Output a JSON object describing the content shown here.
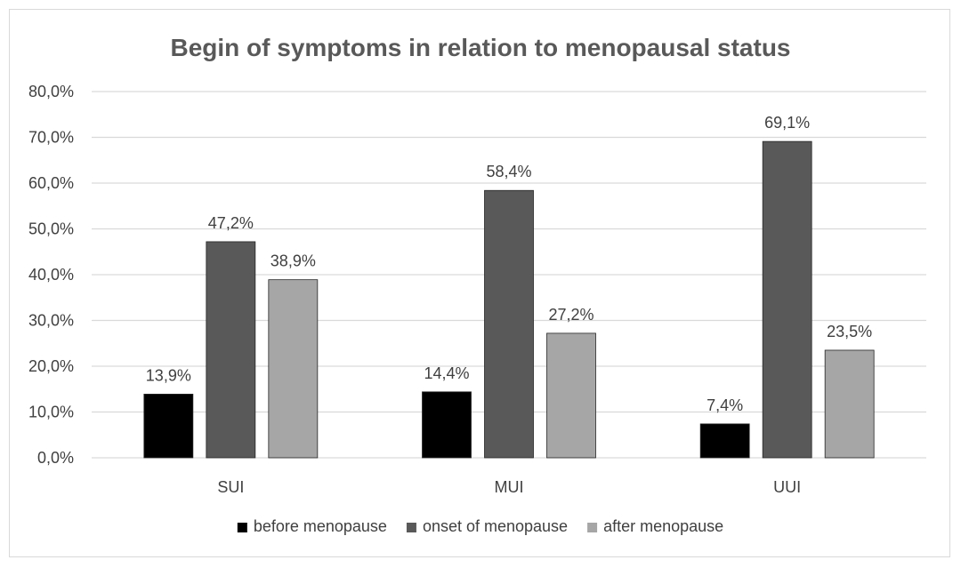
{
  "chart_data": {
    "type": "bar",
    "title": "Begin of symptoms in relation to menopausal status",
    "xlabel": "",
    "ylabel": "",
    "categories": [
      "SUI",
      "MUI",
      "UUI"
    ],
    "series": [
      {
        "name": "before menopause",
        "color": "#000000",
        "values": [
          13.9,
          14.4,
          7.4
        ],
        "labels": [
          "13,9%",
          "14,4%",
          "7,4%"
        ]
      },
      {
        "name": "onset of menopause",
        "color": "#595959",
        "values": [
          47.2,
          58.4,
          69.1
        ],
        "labels": [
          "47,2%",
          "58,4%",
          "69,1%"
        ]
      },
      {
        "name": "after menopause",
        "color": "#a6a6a6",
        "values": [
          38.9,
          27.2,
          23.5
        ],
        "labels": [
          "38,9%",
          "27,2%",
          "23,5%"
        ]
      }
    ],
    "ylim": [
      0,
      80
    ],
    "yticks": [
      0,
      10,
      20,
      30,
      40,
      50,
      60,
      70,
      80
    ],
    "ytick_labels": [
      "0,0%",
      "10,0%",
      "20,0%",
      "30,0%",
      "40,0%",
      "50,0%",
      "60,0%",
      "70,0%",
      "80,0%"
    ],
    "grid": true,
    "legend_position": "bottom",
    "gridline_color": "#d9d9d9"
  }
}
